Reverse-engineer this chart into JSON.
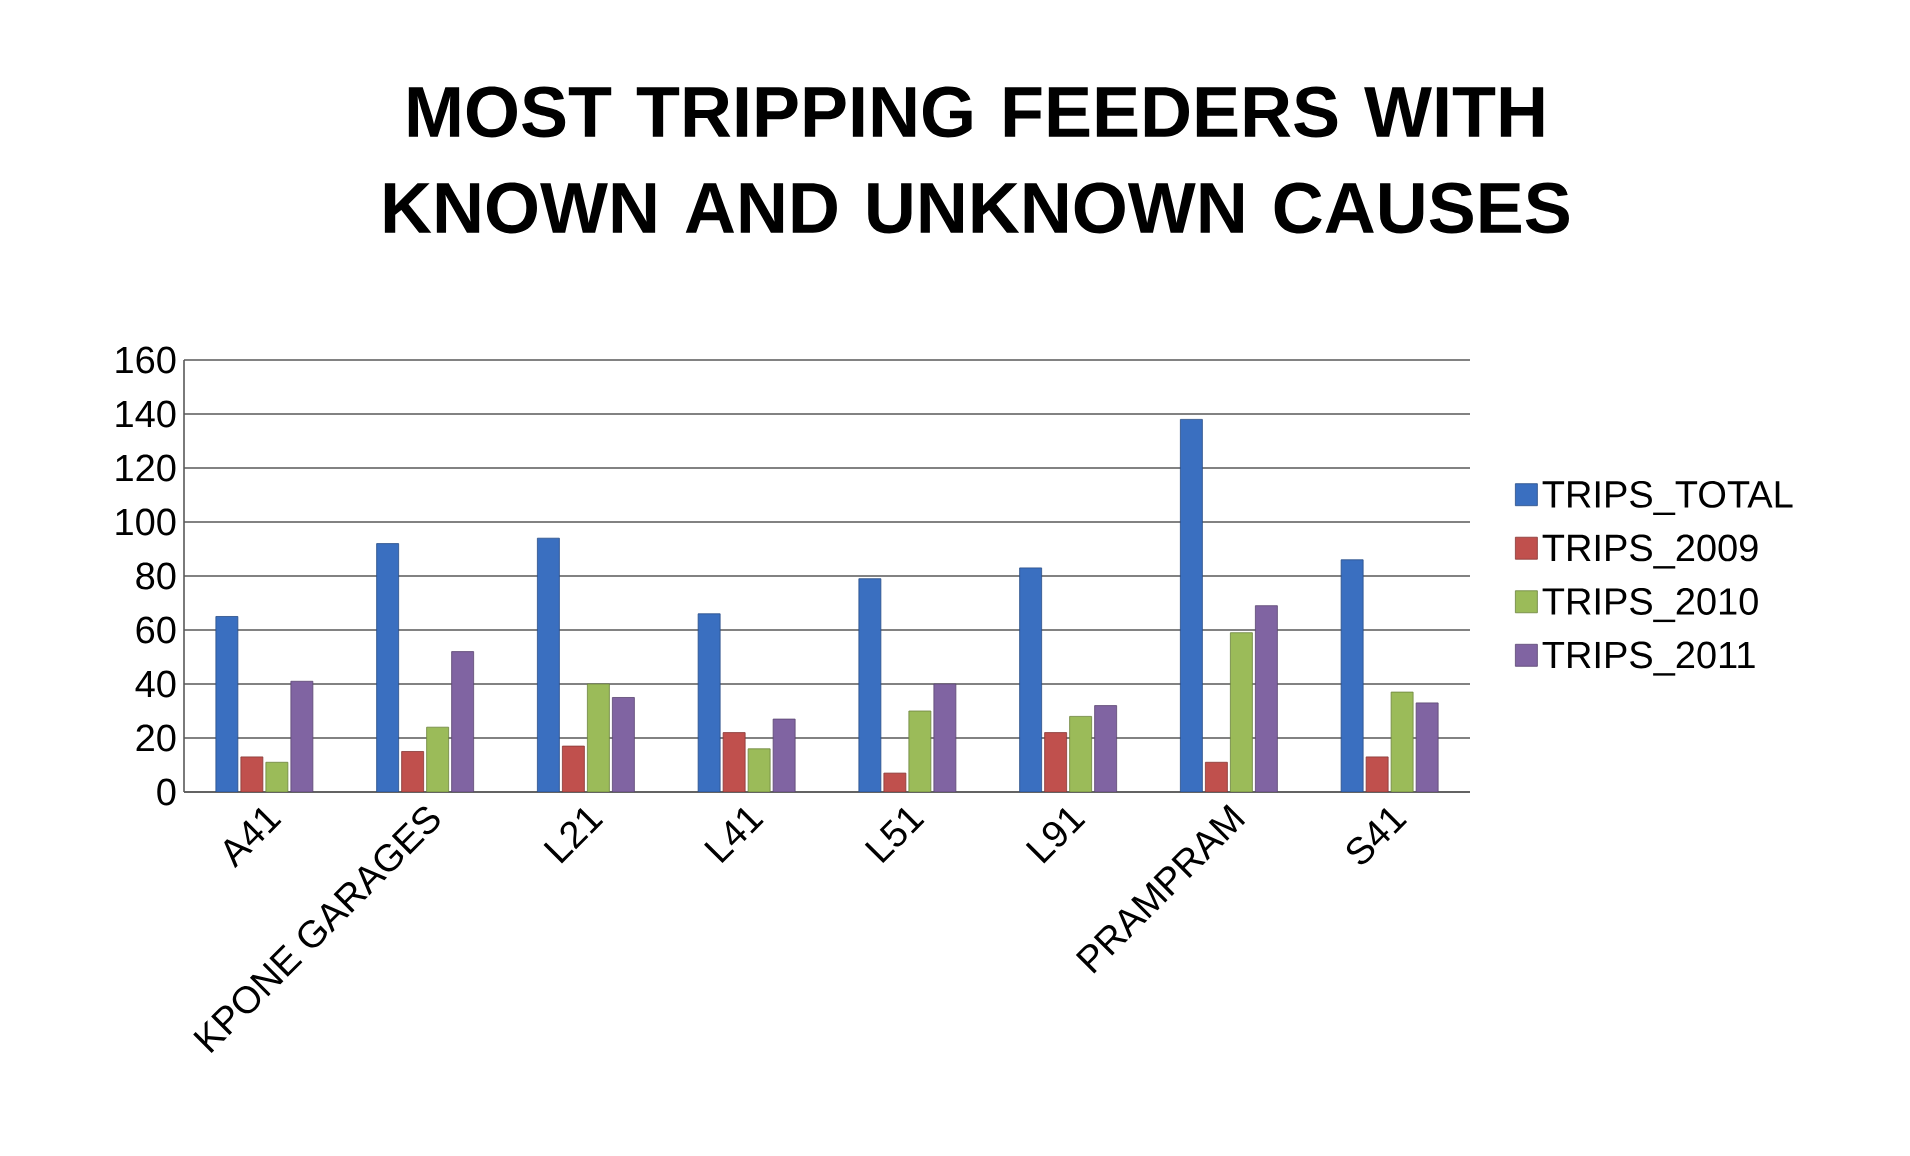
{
  "chart_data": {
    "type": "bar",
    "title": "MOST TRIPPING FEEDERS  WITH KNOWN AND UNKNOWN CAUSES",
    "categories": [
      "A41",
      "KPONE GARAGES",
      "L21",
      "L41",
      "L51",
      "L91",
      "PRAMPRAM",
      "S41"
    ],
    "series": [
      {
        "name": "TRIPS_TOTAL",
        "color": "#3a6fc0",
        "values": [
          65,
          92,
          94,
          66,
          79,
          83,
          138,
          86
        ]
      },
      {
        "name": "TRIPS_2009",
        "color": "#c0504d",
        "values": [
          13,
          15,
          17,
          22,
          7,
          22,
          11,
          13
        ]
      },
      {
        "name": "TRIPS_2010",
        "color": "#9bbb59",
        "values": [
          11,
          24,
          40,
          16,
          30,
          28,
          59,
          37
        ]
      },
      {
        "name": "TRIPS_2011",
        "color": "#8064a2",
        "values": [
          41,
          52,
          35,
          27,
          40,
          32,
          69,
          33
        ]
      }
    ],
    "ylim": [
      0,
      160
    ],
    "yticks": [
      0,
      20,
      40,
      60,
      80,
      100,
      120,
      140,
      160
    ],
    "grid": "y",
    "legend": "right"
  }
}
